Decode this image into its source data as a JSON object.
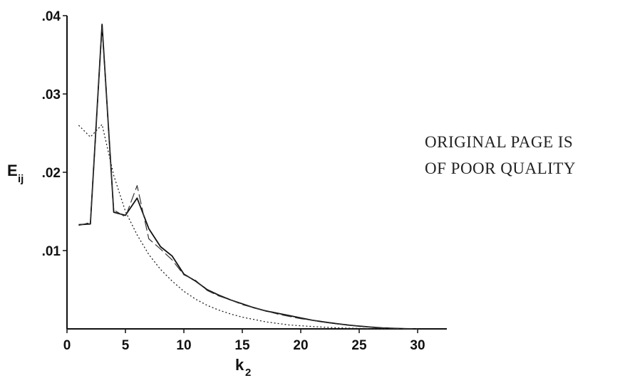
{
  "chart_data": {
    "type": "line",
    "xlabel": "k",
    "xlabel_sub": "2",
    "ylabel": "E",
    "ylabel_sub": "ij",
    "xlim": [
      0,
      32.5
    ],
    "ylim": [
      0,
      0.04
    ],
    "xticks": [
      0,
      5,
      10,
      15,
      20,
      25,
      30
    ],
    "xtick_labels": [
      "0",
      "5",
      "10",
      "15",
      "20",
      "25",
      "30"
    ],
    "yticks": [
      0.01,
      0.02,
      0.03,
      0.04
    ],
    "ytick_labels": [
      ".01",
      ".02",
      ".03",
      ".04"
    ],
    "grid": false,
    "series": [
      {
        "style": "solid",
        "x": [
          1,
          2,
          3,
          4,
          5,
          6,
          7,
          8,
          9,
          10,
          11,
          12,
          13,
          14,
          15,
          16,
          17,
          18,
          19,
          20,
          21,
          22,
          23,
          24,
          25,
          26,
          27,
          28,
          29,
          30
        ],
        "y": [
          0.0133,
          0.0134,
          0.0389,
          0.0149,
          0.0145,
          0.0167,
          0.0128,
          0.0105,
          0.0093,
          0.007,
          0.0061,
          0.005,
          0.0043,
          0.0037,
          0.0032,
          0.0027,
          0.0023,
          0.002,
          0.0017,
          0.0014,
          0.0011,
          0.00088,
          0.00068,
          0.0005,
          0.00035,
          0.00023,
          0.00013,
          6e-05,
          2e-05,
          0.0
        ]
      },
      {
        "style": "dashed",
        "x": [
          1,
          2,
          3,
          4,
          5,
          6,
          7,
          8,
          9,
          10,
          11,
          12,
          13,
          14,
          15,
          16,
          17,
          18,
          19,
          20,
          21,
          22,
          23,
          24,
          25,
          26,
          27,
          28,
          29,
          30
        ],
        "y": [
          0.0132,
          0.0136,
          0.0385,
          0.0152,
          0.0143,
          0.0183,
          0.0115,
          0.0102,
          0.0088,
          0.0069,
          0.0062,
          0.0049,
          0.0042,
          0.0037,
          0.0031,
          0.0027,
          0.0023,
          0.0019,
          0.0016,
          0.0013,
          0.0011,
          0.00085,
          0.00065,
          0.00048,
          0.00033,
          0.00022,
          0.00012,
          5e-05,
          2e-05,
          0.0
        ]
      },
      {
        "style": "dotted",
        "x": [
          1,
          2,
          3,
          4,
          5,
          6,
          7,
          8,
          9,
          10,
          11,
          12,
          13,
          14,
          15,
          16,
          17,
          18,
          19,
          20,
          21,
          22,
          23,
          24,
          25,
          26,
          27,
          28
        ],
        "y": [
          0.026,
          0.0245,
          0.0261,
          0.0196,
          0.015,
          0.012,
          0.0095,
          0.0076,
          0.0061,
          0.0048,
          0.0038,
          0.003,
          0.0024,
          0.0019,
          0.0015,
          0.0012,
          0.0009,
          0.0007,
          0.0005,
          0.0004,
          0.0003,
          0.00022,
          0.00015,
          0.0001,
          6e-05,
          3e-05,
          1e-05,
          0.0
        ]
      }
    ]
  },
  "stamp": {
    "line1": "ORIGINAL PAGE IS",
    "line2": "OF POOR QUALITY"
  }
}
